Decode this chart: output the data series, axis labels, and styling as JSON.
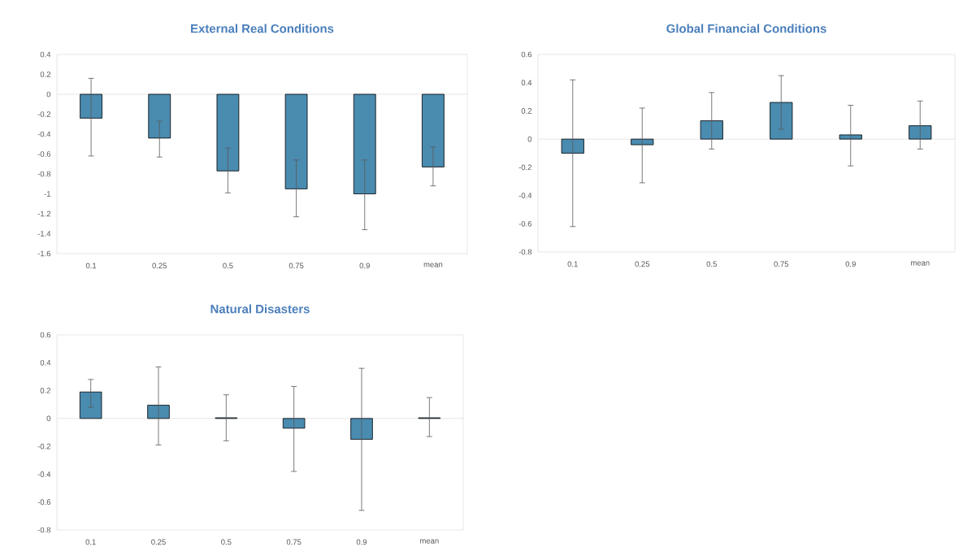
{
  "chart_data": [
    {
      "type": "bar",
      "title": "External Real Conditions",
      "categories": [
        "0.1",
        "0.25",
        "0.5",
        "0.75",
        "0.9",
        "mean"
      ],
      "color": "#4a8bb0",
      "values": [
        -0.24,
        -0.44,
        -0.77,
        -0.95,
        -1.0,
        -0.73
      ],
      "errors": [
        [
          -0.62,
          0.16
        ],
        [
          -0.63,
          -0.27
        ],
        [
          -0.99,
          -0.54
        ],
        [
          -1.23,
          -0.66
        ],
        [
          -1.36,
          -0.66
        ],
        [
          -0.92,
          -0.53
        ]
      ],
      "ylim": [
        -1.6,
        0.4
      ],
      "yticks": [
        -1.6,
        -1.4,
        -1.2,
        -1,
        -0.8,
        -0.6,
        -0.4,
        -0.2,
        0,
        0.2,
        0.4
      ]
    },
    {
      "type": "bar",
      "title": "Global Financial Conditions",
      "categories": [
        "0.1",
        "0.25",
        "0.5",
        "0.75",
        "0.9",
        "mean"
      ],
      "color": "#4a8bb0",
      "values": [
        -0.1,
        -0.04,
        0.13,
        0.26,
        0.03,
        0.095
      ],
      "errors": [
        [
          -0.62,
          0.42
        ],
        [
          -0.31,
          0.22
        ],
        [
          -0.07,
          0.33
        ],
        [
          0.07,
          0.45
        ],
        [
          -0.19,
          0.24
        ],
        [
          -0.07,
          0.27
        ]
      ],
      "ylim": [
        -0.8,
        0.6
      ],
      "yticks": [
        -0.8,
        -0.6,
        -0.4,
        -0.2,
        0,
        0.2,
        0.4,
        0.6
      ]
    },
    {
      "type": "bar",
      "title": "Natural Disasters",
      "categories": [
        "0.1",
        "0.25",
        "0.5",
        "0.75",
        "0.9",
        "mean"
      ],
      "color": "#4a8bb0",
      "values": [
        0.19,
        0.095,
        0.005,
        -0.07,
        -0.15,
        0.005
      ],
      "errors": [
        [
          0.08,
          0.28
        ],
        [
          -0.19,
          0.37
        ],
        [
          -0.16,
          0.17
        ],
        [
          -0.38,
          0.23
        ],
        [
          -0.66,
          0.36
        ],
        [
          -0.13,
          0.15
        ]
      ],
      "ylim": [
        -0.8,
        0.6
      ],
      "yticks": [
        -0.8,
        -0.6,
        -0.4,
        -0.2,
        0,
        0.2,
        0.4,
        0.6
      ]
    }
  ]
}
